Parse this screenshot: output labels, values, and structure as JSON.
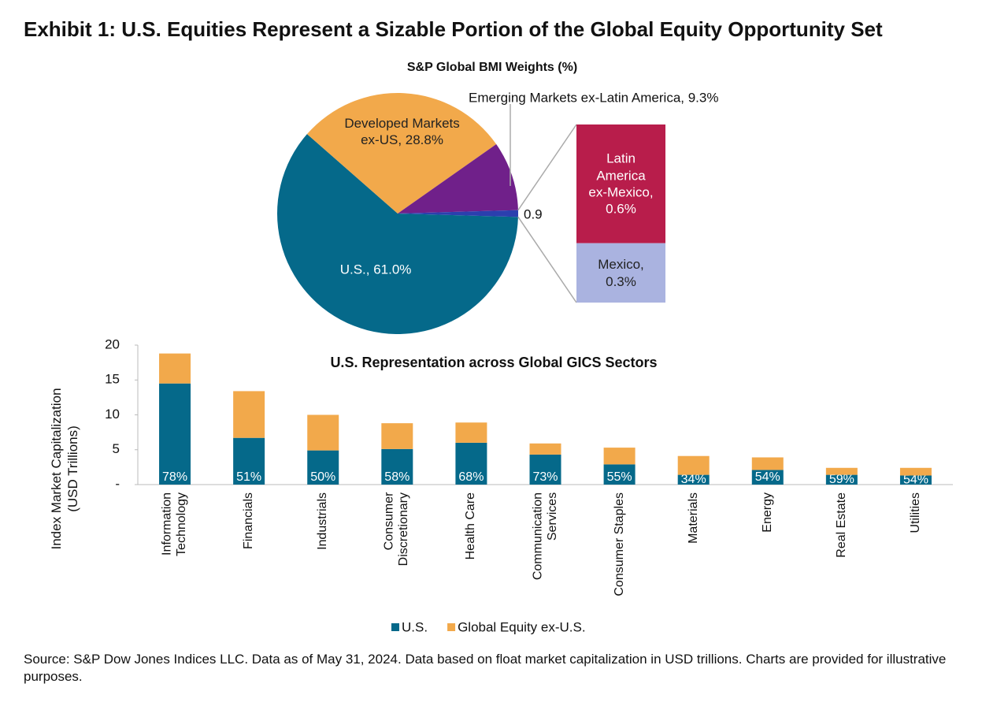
{
  "title": "Exhibit 1: U.S. Equities Represent a Sizable Portion of the Global Equity Opportunity Set",
  "source": "Source: S&P Dow Jones Indices LLC. Data as of May 31, 2024. Data based on float market capitalization in USD trillions. Charts are provided for illustrative purposes.",
  "chart_data": [
    {
      "type": "pie",
      "title": "S&P Global BMI Weights (%)",
      "labels": [
        "U.S., 61.0%",
        "Developed Markets\nex-US, 28.8%",
        "Emerging Markets ex-Latin America, 9.3%",
        "0.9"
      ],
      "values": [
        61.0,
        28.8,
        9.3,
        0.9
      ],
      "colors": [
        "#05698a",
        "#f2a94b",
        "#70208a",
        "#2b3fae"
      ],
      "breakdown": {
        "labels": [
          "Latin\nAmerica\nex-Mexico,\n0.6%",
          "Mexico,\n0.3%"
        ],
        "values": [
          0.6,
          0.3
        ],
        "colors": [
          "#b81d4b",
          "#aab3e0"
        ]
      }
    },
    {
      "type": "bar",
      "stacked": true,
      "title": "U.S. Representation across Global GICS Sectors",
      "y_label": "Index Market Capitalization\n(USD Trillions)",
      "categories": [
        "Information\nTechnology",
        "Financials",
        "Industrials",
        "Consumer\nDiscretionary",
        "Health Care",
        "Communication\nServices",
        "Consumer Staples",
        "Materials",
        "Energy",
        "Real Estate",
        "Utilities"
      ],
      "series": [
        {
          "name": "U.S.",
          "color": "#05698a",
          "values": [
            14.5,
            6.7,
            4.9,
            5.1,
            6.0,
            4.3,
            2.9,
            1.4,
            2.1,
            1.4,
            1.3
          ],
          "share_labels": [
            "78%",
            "51%",
            "50%",
            "58%",
            "68%",
            "73%",
            "55%",
            "34%",
            "54%",
            "59%",
            "54%"
          ]
        },
        {
          "name": "Global Equity ex-U.S.",
          "color": "#f2a94b",
          "values": [
            4.3,
            6.7,
            5.1,
            3.7,
            2.9,
            1.6,
            2.4,
            2.7,
            1.8,
            1.0,
            1.1
          ]
        }
      ],
      "ylim": [
        0,
        20
      ],
      "yticks": [
        {
          "value": 0,
          "label": "-"
        },
        5,
        10,
        15,
        20
      ]
    }
  ]
}
